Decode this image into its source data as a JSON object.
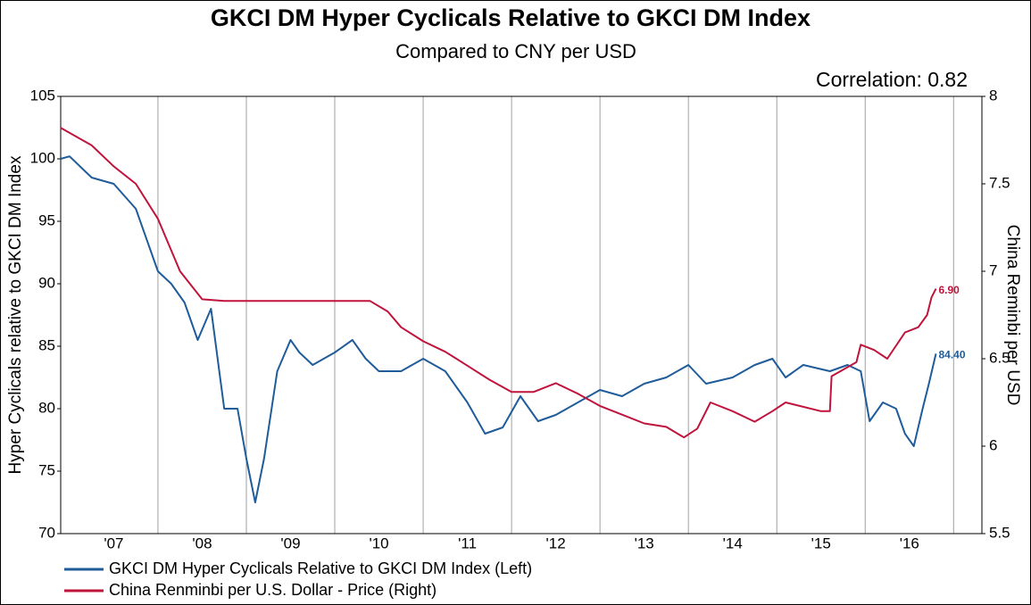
{
  "chart_data": {
    "type": "line",
    "title": "GKCI DM Hyper Cyclicals Relative to GKCI DM Index",
    "subtitle": "Compared to CNY per USD",
    "annotation": "Correlation: 0.82",
    "ylabel": "Hyper Cyclicals relative to GKCI DM Index",
    "y2label": "China Reminbi per USD",
    "xlim": [
      2006.9,
      2017.32
    ],
    "xticks": [
      {
        "value": 2007.5,
        "label": "'07"
      },
      {
        "value": 2008.5,
        "label": "'08"
      },
      {
        "value": 2009.5,
        "label": "'09"
      },
      {
        "value": 2010.5,
        "label": "'10"
      },
      {
        "value": 2011.5,
        "label": "'11"
      },
      {
        "value": 2012.5,
        "label": "'12"
      },
      {
        "value": 2013.5,
        "label": "'13"
      },
      {
        "value": 2014.5,
        "label": "'14"
      },
      {
        "value": 2015.5,
        "label": "'15"
      },
      {
        "value": 2016.5,
        "label": "'16"
      }
    ],
    "ylim": [
      70,
      105
    ],
    "yticks": [
      70,
      75,
      80,
      85,
      90,
      95,
      100,
      105
    ],
    "y2lim": [
      5.5,
      8
    ],
    "y2ticks": [
      5.5,
      6,
      6.5,
      7,
      7.5,
      8
    ],
    "grid": true,
    "legend": "bottom",
    "series": [
      {
        "name": "GKCI DM Hyper Cyclicals Relative to GKCI DM Index  (Left)",
        "color": "#1f5c99",
        "axis": "y",
        "x": [
          2006.9,
          2007.0,
          2007.25,
          2007.5,
          2007.75,
          2008.0,
          2008.15,
          2008.3,
          2008.45,
          2008.6,
          2008.75,
          2008.9,
          2009.0,
          2009.1,
          2009.2,
          2009.35,
          2009.5,
          2009.6,
          2009.75,
          2010.0,
          2010.2,
          2010.35,
          2010.5,
          2010.75,
          2011.0,
          2011.25,
          2011.5,
          2011.7,
          2011.9,
          2012.1,
          2012.3,
          2012.5,
          2012.75,
          2013.0,
          2013.25,
          2013.5,
          2013.75,
          2014.0,
          2014.2,
          2014.5,
          2014.75,
          2014.95,
          2015.1,
          2015.3,
          2015.6,
          2015.8,
          2015.95,
          2016.05,
          2016.2,
          2016.35,
          2016.45,
          2016.55,
          2016.65,
          2016.72,
          2016.8
        ],
        "values": [
          100,
          100.2,
          98.5,
          98,
          96,
          91,
          90,
          88.5,
          85.5,
          88,
          80,
          80,
          76,
          72.5,
          76,
          83,
          85.5,
          84.5,
          83.5,
          84.5,
          85.5,
          84,
          83,
          83,
          84,
          83,
          80.5,
          78,
          78.5,
          81,
          79,
          79.5,
          80.5,
          81.5,
          81,
          82,
          82.5,
          83.5,
          82,
          82.5,
          83.5,
          84,
          82.5,
          83.5,
          83,
          83.5,
          83,
          79,
          80.5,
          80,
          78,
          77,
          80,
          82,
          84.4
        ],
        "value_labels": [
          null,
          null,
          null,
          null,
          null,
          null,
          null,
          null,
          null,
          null,
          null,
          null,
          null,
          null,
          null,
          null,
          null,
          null,
          null,
          null,
          null,
          null,
          null,
          null,
          null,
          null,
          null,
          null,
          null,
          null,
          null,
          null,
          null,
          null,
          null,
          null,
          null,
          null,
          null,
          null,
          null,
          null,
          null,
          null,
          null,
          null,
          null,
          null,
          null,
          null,
          null,
          null,
          null,
          null,
          "84.40"
        ]
      },
      {
        "name": "China Renminbi per U.S. Dollar - Price  (Right)",
        "color": "#c0143c",
        "axis": "y2",
        "x": [
          2006.9,
          2007.25,
          2007.5,
          2007.75,
          2008.0,
          2008.25,
          2008.5,
          2008.75,
          2009.0,
          2009.5,
          2010.0,
          2010.4,
          2010.6,
          2010.75,
          2011.0,
          2011.25,
          2011.5,
          2011.75,
          2012.0,
          2012.25,
          2012.5,
          2012.75,
          2013.0,
          2013.25,
          2013.5,
          2013.75,
          2013.95,
          2014.1,
          2014.25,
          2014.5,
          2014.75,
          2014.95,
          2015.1,
          2015.5,
          2015.6,
          2015.62,
          2015.9,
          2015.95,
          2016.1,
          2016.25,
          2016.45,
          2016.6,
          2016.7,
          2016.75,
          2016.8
        ],
        "values": [
          7.82,
          7.72,
          7.6,
          7.5,
          7.3,
          7.0,
          6.84,
          6.83,
          6.83,
          6.83,
          6.83,
          6.83,
          6.77,
          6.68,
          6.6,
          6.54,
          6.46,
          6.38,
          6.31,
          6.31,
          6.36,
          6.3,
          6.23,
          6.18,
          6.13,
          6.11,
          6.05,
          6.1,
          6.25,
          6.2,
          6.14,
          6.2,
          6.25,
          6.2,
          6.2,
          6.4,
          6.48,
          6.58,
          6.55,
          6.5,
          6.65,
          6.68,
          6.75,
          6.85,
          6.9
        ],
        "value_labels": [
          null,
          null,
          null,
          null,
          null,
          null,
          null,
          null,
          null,
          null,
          null,
          null,
          null,
          null,
          null,
          null,
          null,
          null,
          null,
          null,
          null,
          null,
          null,
          null,
          null,
          null,
          null,
          null,
          null,
          null,
          null,
          null,
          null,
          null,
          null,
          null,
          null,
          null,
          null,
          null,
          null,
          null,
          null,
          null,
          "6.90"
        ]
      }
    ]
  }
}
